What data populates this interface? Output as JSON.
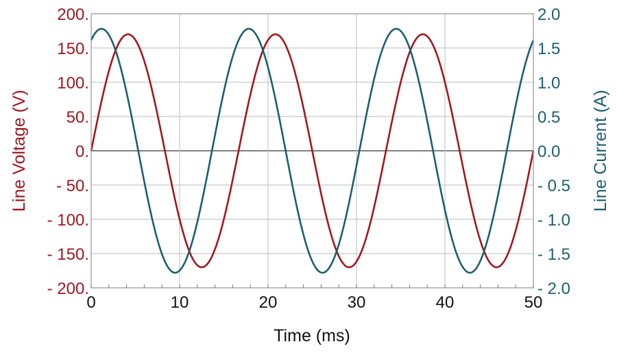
{
  "chart_data": {
    "type": "line",
    "xlabel": "Time (ms)",
    "ylabel_left": "Line Voltage (V)",
    "ylabel_right": "Line Current (A)",
    "xlim": [
      0,
      50
    ],
    "ylim_left": [
      -200,
      200
    ],
    "ylim_right": [
      -2.0,
      2.0
    ],
    "x_ticks": [
      "0",
      "10",
      "20",
      "30",
      "40",
      "50"
    ],
    "x_tick_values": [
      0,
      10,
      20,
      30,
      40,
      50
    ],
    "x_minor_step": 2,
    "y_left_ticks": [
      "200.",
      "150.",
      "100.",
      "50.",
      "0.",
      "- 50.",
      "- 100.",
      "- 150.",
      "- 200."
    ],
    "y_left_tick_values": [
      200,
      150,
      100,
      50,
      0,
      -50,
      -100,
      -150,
      -200
    ],
    "y_right_ticks": [
      "2.0",
      "1.5",
      "1.0",
      "0.5",
      "0.0",
      "- 0.5",
      "- 1.0",
      "- 1.5",
      "- 2.0"
    ],
    "grid": true,
    "series": [
      {
        "axis": "left",
        "color": "#a3161f",
        "form": "sine",
        "amplitude": 170,
        "frequency_hz": 60,
        "phase_deg": 0
      },
      {
        "axis": "right",
        "color": "#1b5f6e",
        "form": "sine",
        "amplitude": 1.78,
        "frequency_hz": 60,
        "phase_deg": 65
      }
    ],
    "colors": {
      "left_axis": "#a3161f",
      "right_axis": "#1b5f6e",
      "x_axis": "#111111",
      "grid": "#c8c8c8",
      "zero_line": "#555555"
    }
  }
}
